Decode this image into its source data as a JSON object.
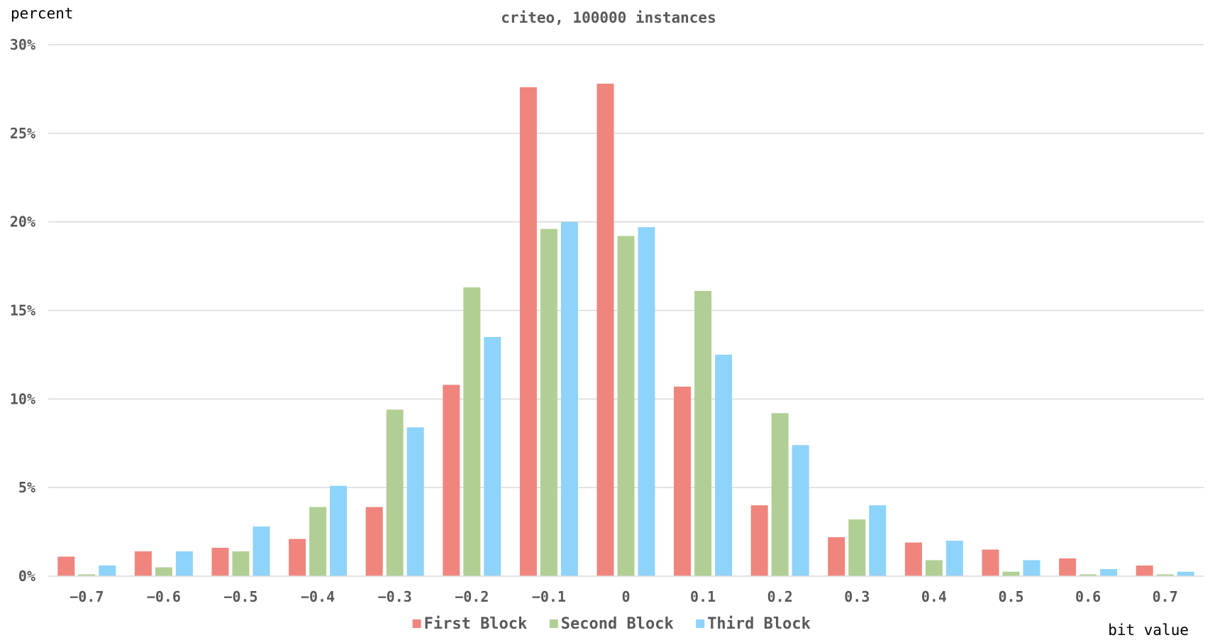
{
  "chart_data": {
    "type": "bar",
    "title": "criteo, 100000 instances",
    "xlabel": "bit value",
    "ylabel": "percent",
    "categories": [
      "−0.7",
      "−0.6",
      "−0.5",
      "−0.4",
      "−0.3",
      "−0.2",
      "−0.1",
      "0",
      "0.1",
      "0.2",
      "0.3",
      "0.4",
      "0.5",
      "0.6",
      "0.7"
    ],
    "ylim": [
      0,
      30
    ],
    "yticks": [
      0,
      5,
      10,
      15,
      20,
      25,
      30
    ],
    "ytick_labels": [
      "0%",
      "5%",
      "10%",
      "15%",
      "20%",
      "25%",
      "30%"
    ],
    "grid": true,
    "legend_position": "bottom",
    "series": [
      {
        "name": "First Block",
        "color": "#ef857d",
        "values": [
          1.1,
          1.4,
          1.6,
          2.1,
          3.9,
          10.8,
          27.6,
          27.8,
          10.7,
          4.0,
          2.2,
          1.9,
          1.5,
          1.0,
          0.6
        ]
      },
      {
        "name": "Second Block",
        "color": "#b1cf94",
        "values": [
          0.1,
          0.5,
          1.4,
          3.9,
          9.4,
          16.3,
          19.6,
          19.2,
          16.1,
          9.2,
          3.2,
          0.9,
          0.25,
          0.1,
          0.1
        ]
      },
      {
        "name": "Third Block",
        "color": "#8ed3fa",
        "values": [
          0.6,
          1.4,
          2.8,
          5.1,
          8.4,
          13.5,
          20.0,
          19.7,
          12.5,
          7.4,
          4.0,
          2.0,
          0.9,
          0.4,
          0.25
        ]
      }
    ],
    "colors": {
      "grid": "#d9d9d9",
      "axis": "#d9d9d9",
      "tick_text": "#595959",
      "title_text": "#595959",
      "axis_title_text": "#000000"
    }
  }
}
